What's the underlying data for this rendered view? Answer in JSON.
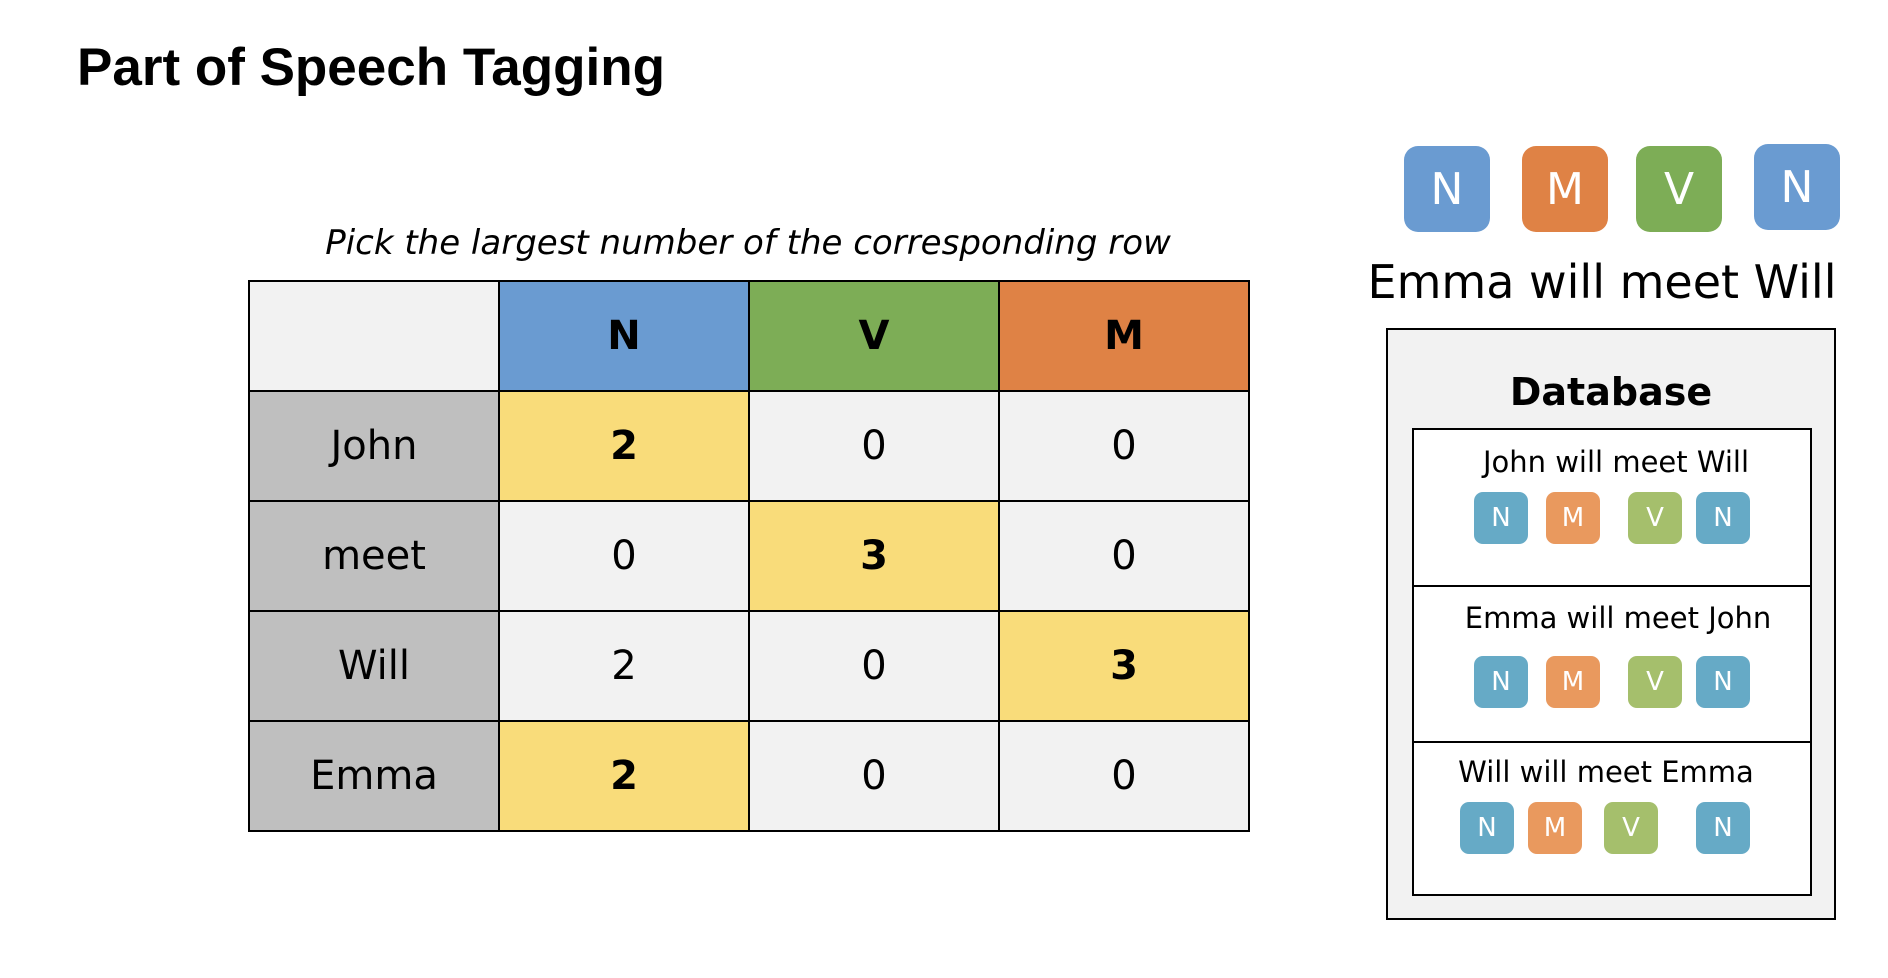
{
  "title": "Part of Speech Tagging",
  "table": {
    "caption": "Pick the largest number of the corresponding row",
    "columns": [
      "N",
      "V",
      "M"
    ],
    "rows": [
      {
        "label": "John",
        "values": [
          "2",
          "0",
          "0"
        ]
      },
      {
        "label": "meet",
        "values": [
          "0",
          "3",
          "0"
        ]
      },
      {
        "label": "Will",
        "values": [
          "2",
          "0",
          "3"
        ]
      },
      {
        "label": "Emma",
        "values": [
          "2",
          "0",
          "0"
        ]
      }
    ]
  },
  "target": {
    "sentence": "Emma will meet Will",
    "tags": [
      "N",
      "M",
      "V",
      "N"
    ]
  },
  "database": {
    "title": "Database",
    "entries": [
      {
        "sentence": "John will meet Will",
        "tags": [
          "N",
          "M",
          "V",
          "N"
        ]
      },
      {
        "sentence": "Emma will meet John",
        "tags": [
          "N",
          "M",
          "V",
          "N"
        ]
      },
      {
        "sentence": "Will will meet Emma",
        "tags": [
          "N",
          "M",
          "V",
          "N"
        ]
      }
    ]
  },
  "colors": {
    "noun_header": "#6a9bd1",
    "verb_header": "#7dad56",
    "modal_header": "#df8245",
    "highlight_cell": "#f9dc7a",
    "row_label_bg": "#bfbfbf",
    "cell_bg": "#f2f2f2",
    "db_noun": "#66aac6",
    "db_modal": "#e9995e",
    "db_verb": "#a5bf6c"
  }
}
